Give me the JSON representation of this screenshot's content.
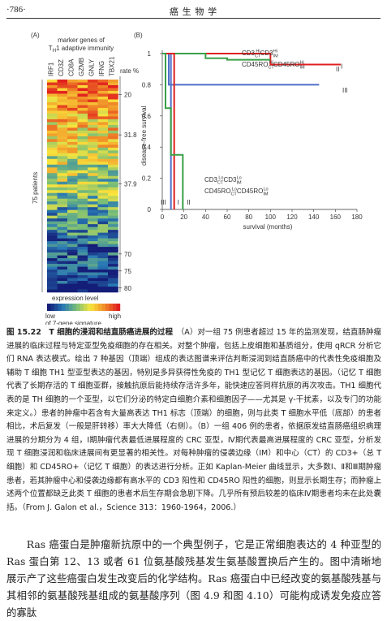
{
  "header": {
    "page_number": "·786·",
    "book_title": "癌 生 物 学"
  },
  "panel_a": {
    "label": "(A)",
    "title_line1": "marker genes of",
    "title_line2": [
      "T",
      "H",
      "1 adaptive immunity"
    ],
    "genes": [
      "IRF1",
      "CD3Z",
      "CD8A",
      "GZMB",
      "GNLY",
      "IFNG",
      "TBX21"
    ],
    "rate_label": "rate %",
    "rates": [
      "20",
      "31.8",
      "37.9",
      "70",
      "75",
      "80"
    ],
    "patients_label": "75 patients",
    "scale_title": "expression level",
    "scale_low": "low",
    "scale_high": "high",
    "scale_note": "of 7-gene signature"
  },
  "chart_data": {
    "type": "line",
    "label": "(B)",
    "ylabel": "disease-free survival",
    "xlabel": "survival (months)",
    "xlim": [
      0,
      180
    ],
    "xticks": [
      0,
      20,
      40,
      60,
      80,
      100,
      120,
      140,
      160,
      180
    ],
    "ylim": [
      0,
      1
    ],
    "yticks": [
      0,
      0.2,
      0.4,
      0.6,
      0.8,
      {
        "value": 1,
        "label": "1"
      }
    ],
    "series": [
      {
        "name": "I",
        "color": "#e02020",
        "x": [
          0,
          100,
          100,
          165
        ],
        "values": [
          1,
          1,
          0.93,
          0.93
        ]
      },
      {
        "name": "II",
        "color": "#3aa048",
        "x": [
          0,
          40,
          40,
          60,
          60,
          100
        ],
        "values": [
          1,
          1,
          0.97,
          0.97,
          0.96,
          0.96
        ]
      },
      {
        "name": "III",
        "color": "#5070c8",
        "x": [
          0,
          6,
          6,
          145
        ],
        "values": [
          1,
          1,
          0.8,
          0.8
        ]
      },
      {
        "name": "III",
        "color": "#5070c8",
        "x": [
          0,
          8,
          8
        ],
        "values": [
          1,
          1,
          0
        ]
      },
      {
        "name": "I",
        "color": "#e02020",
        "x": [
          0,
          11,
          11
        ],
        "values": [
          1,
          1,
          0
        ]
      },
      {
        "name": "II",
        "color": "#3aa048",
        "x": [
          0,
          3,
          3,
          8,
          8,
          19,
          19
        ],
        "values": [
          1,
          1,
          0.65,
          0.65,
          0.35,
          0.35,
          0
        ]
      }
    ],
    "legend_high": [
      [
        "CD3",
        "CT",
        "Hi",
        "CD3",
        "IM",
        "Hi"
      ],
      [
        "CD45RO",
        "CT",
        "Hi",
        "CD45RO",
        "IM",
        "Hi"
      ]
    ],
    "legend_low": [
      [
        "CD3",
        "CT",
        "Lo",
        "CD3",
        "IM",
        "Lo"
      ],
      [
        "CD45RO",
        "CT",
        "Lo",
        "CD45RO",
        "IM",
        "Lo"
      ]
    ]
  },
  "caption": {
    "title": "图 15.22　T 细胞的浸润和结直肠癌进展的过程",
    "text": "（A）对一组 75 例患者超过 15 年的监测发现，结直肠肿瘤进展的临床过程与特定亚型免疫细胞的存在相关。对整个肿瘤，包括上皮细胞和基质组分，使用 qRCR 分析它们 RNA 表达模式。绘出 7 种基因（顶端）组成的表达图谱来评估判断浸润到结直肠癌中的代表性免疫细胞及辅助 T 细胞 TH1 型亚型表达的基因，特别是多异获得性免疫的 TH1 型记忆 T 细胞表达的基因。（记忆 T 细胞代表了长期存活的 T 细胞亚群，接触抗原后能持续存活许多年，能快速应答同样抗原的再次攻击。TH1 细胞代表的是 TH 细胞的一个亚型，以它们分泌的特定白细胞介素和细胞因子——尤其是 γ-干扰素，以及专门的功能来定义。）患者的肿瘤中若含有大量高表达 TH1 标志（顶端）的细胞，则与此类 T 细胞水平低（底部）的患者相比，术后复发（一般是肝转移）率大大降低（右侧）。（B）一组 406 例的患者，依据原发结直肠癌组织病理进展的分期分为 4 组，Ⅰ期肿瘤代表最低进展程度的 CRC 亚型，Ⅳ期代表最高进展程度的 CRC 亚型，分析发现 T 细胞浸润和临床进展间有更显著的相关性。对每种肿瘤的侵袭边缘（IM）和中心（CT）的 CD3+（总 T 细胞）和 CD45RO+（记忆 T 细胞）的表达进行分析。正如 Kaplan-Meier 曲线显示，大多数Ⅰ、Ⅱ和Ⅲ期肿瘤患者，若其肿瘤中心和侵袭边缘都有高水平的 CD3 阳性和 CD45RO 阳性的细胞，则显示长期生存；而肿瘤上述两个位置都缺乏此类 T 细胞的患者术后生存期会急剧下降。几乎所有预后较差的临床Ⅳ期患者均未在此处囊括。（From J. Galon et al.，Science 313：1960-1964，2006.）"
  },
  "body": "Ras 癌蛋白是肿瘤新抗原中的一个典型例子，它是正常细胞表达的 4 种亚型的 Ras 蛋白第 12、13 或者 61 位氨基酸残基发生氨基酸置换后产生的。图中清晰地展示产了这些癌蛋白发生改变后的化学结构。Ras 癌蛋白中已经改变的氨基酸残基与其相邻的氨基酸残基组成的氨基酸序列（图 4.9 和图 4.10）可能构成诱发免疫应答的寡肽"
}
